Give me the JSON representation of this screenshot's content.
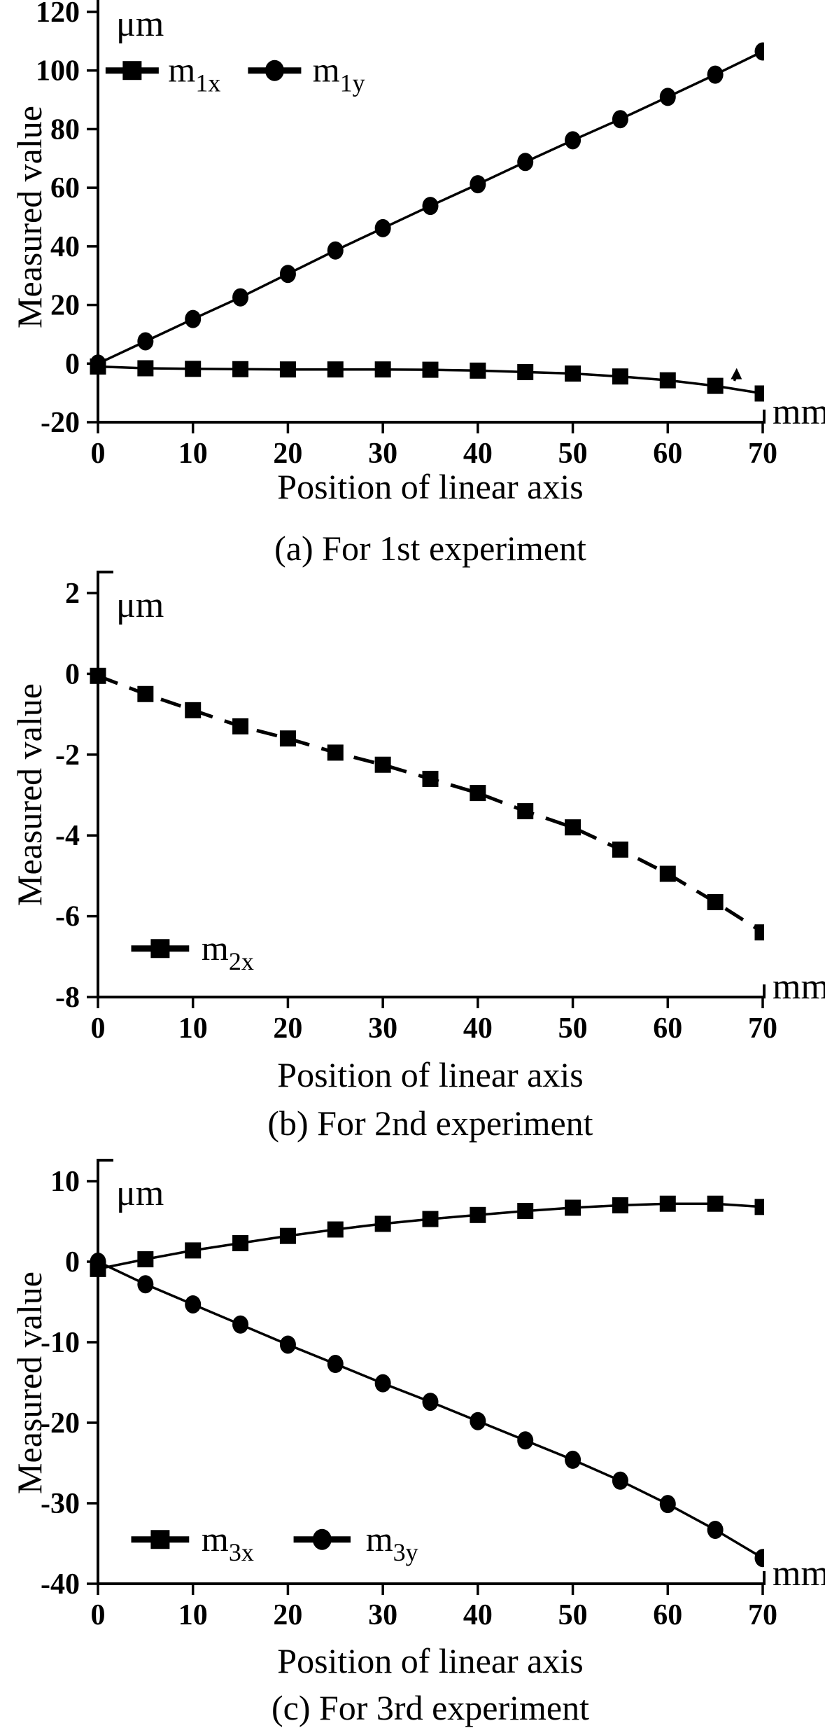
{
  "figure": {
    "background": "#ffffff",
    "ink": "#000000"
  },
  "chart_data": [
    {
      "id": "a",
      "type": "line",
      "title": "(a) For 1st experiment",
      "xlabel": "Position of linear axis",
      "ylabel": "Measured value",
      "x_unit": "mm",
      "y_unit": "μm",
      "x": [
        0,
        5,
        10,
        15,
        20,
        25,
        30,
        35,
        40,
        45,
        50,
        55,
        60,
        65,
        70
      ],
      "xlim": [
        0,
        70
      ],
      "xtick_step": 10,
      "ylim": [
        -20,
        120
      ],
      "ytick_step": 20,
      "grid": false,
      "series": [
        {
          "name": "m1x",
          "label_base": "m",
          "label_sub": "1x",
          "marker": "square",
          "line": "solid",
          "values": [
            -1.0,
            -1.6,
            -1.8,
            -1.9,
            -2.0,
            -2.0,
            -2.0,
            -2.1,
            -2.4,
            -2.9,
            -3.4,
            -4.4,
            -5.7,
            -7.6,
            -10.2
          ]
        },
        {
          "name": "m1y",
          "label_base": "m",
          "label_sub": "1y",
          "marker": "circle",
          "line": "solid",
          "values": [
            0,
            7.6,
            15.2,
            22.6,
            30.6,
            38.6,
            46.2,
            53.8,
            61.2,
            68.8,
            76.2,
            83.4,
            91.0,
            98.6,
            106.5
          ]
        }
      ],
      "legend": {
        "position": "top-left-inside",
        "y": 100,
        "entries": [
          {
            "x_line": [
              0.8,
              6.4
            ],
            "x_label": 7.4
          },
          {
            "x_line": [
              15.8,
              21.4
            ],
            "x_label": 22.6
          }
        ]
      },
      "annotation": {
        "type": "arrow-up",
        "x": 67.0,
        "y_from": -5.9,
        "y_to": -2.0
      }
    },
    {
      "id": "b",
      "type": "line",
      "title": "(b) For 2nd experiment",
      "xlabel": "Position of linear axis",
      "ylabel": "Measured value",
      "x_unit": "mm",
      "y_unit": "μm",
      "x": [
        0,
        5,
        10,
        15,
        20,
        25,
        30,
        35,
        40,
        45,
        50,
        55,
        60,
        65,
        70
      ],
      "xlim": [
        0,
        70
      ],
      "xtick_step": 10,
      "ylim": [
        -8,
        2
      ],
      "ytick_step": 2,
      "grid": false,
      "series": [
        {
          "name": "m2x",
          "label_base": "m",
          "label_sub": "2x",
          "marker": "square",
          "line": "dashed",
          "values": [
            -0.05,
            -0.5,
            -0.9,
            -1.3,
            -1.6,
            -1.95,
            -2.25,
            -2.6,
            -2.95,
            -3.4,
            -3.8,
            -4.35,
            -4.95,
            -5.65,
            -6.4
          ]
        }
      ],
      "legend": {
        "position": "bottom-left-inside",
        "y": -6.8,
        "entries": [
          {
            "x_line": [
              3.5,
              9.6
            ],
            "x_label": 10.9
          }
        ]
      }
    },
    {
      "id": "c",
      "type": "line",
      "title": "(c) For 3rd experiment",
      "xlabel": "Position of linear axis",
      "ylabel": "Measured value",
      "x_unit": "mm",
      "y_unit": "μm",
      "x": [
        0,
        5,
        10,
        15,
        20,
        25,
        30,
        35,
        40,
        45,
        50,
        55,
        60,
        65,
        70
      ],
      "xlim": [
        0,
        70
      ],
      "xtick_step": 10,
      "ylim": [
        -40,
        10
      ],
      "ytick_step": 10,
      "grid": false,
      "series": [
        {
          "name": "m3x",
          "label_base": "m",
          "label_sub": "3x",
          "marker": "square",
          "line": "solid",
          "values": [
            -0.9,
            0.3,
            1.4,
            2.3,
            3.2,
            4.0,
            4.7,
            5.3,
            5.8,
            6.3,
            6.7,
            7.0,
            7.2,
            7.2,
            6.8
          ]
        },
        {
          "name": "m3y",
          "label_base": "m",
          "label_sub": "3y",
          "marker": "circle",
          "line": "solid",
          "values": [
            0,
            -2.8,
            -5.3,
            -7.8,
            -10.3,
            -12.7,
            -15.1,
            -17.4,
            -19.8,
            -22.2,
            -24.6,
            -27.2,
            -30.1,
            -33.3,
            -36.8
          ]
        }
      ],
      "legend": {
        "position": "bottom-left-inside",
        "y": -34.5,
        "entries": [
          {
            "x_line": [
              3.5,
              9.6
            ],
            "x_label": 10.9
          },
          {
            "x_line": [
              20.6,
              26.6
            ],
            "x_label": 28.2
          }
        ]
      }
    }
  ]
}
